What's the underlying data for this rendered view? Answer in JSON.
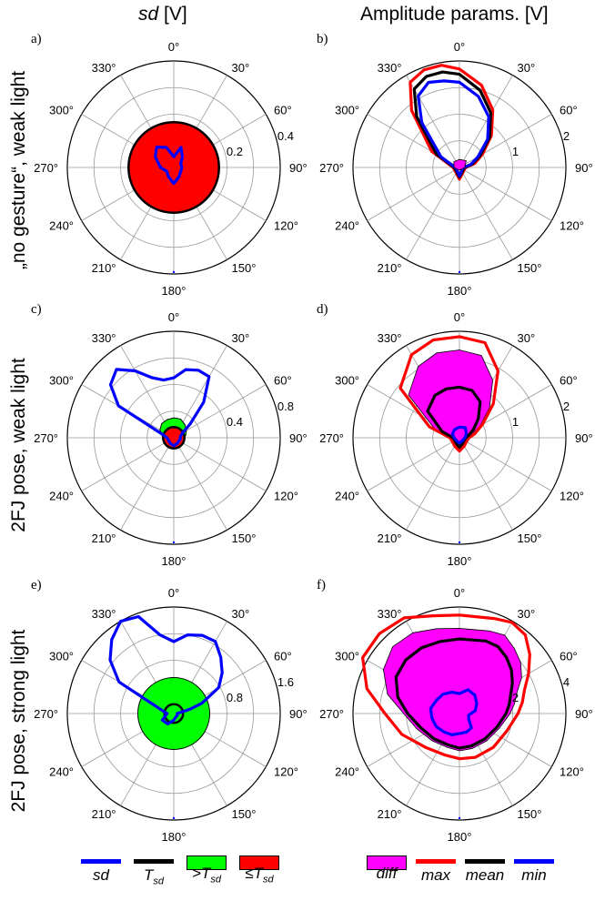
{
  "columns": {
    "left_title_italic": "sd",
    "left_title_rest": " [V]",
    "right_title": "Amplitude params. [V]"
  },
  "rows": [
    "„no gesture“, weak light",
    "2FJ pose, weak light",
    "2FJ pose, strong light"
  ],
  "angle_labels": [
    "0°",
    "30°",
    "60°",
    "90°",
    "120°",
    "150°",
    "180°",
    "210°",
    "240°",
    "270°",
    "300°",
    "330°"
  ],
  "colors": {
    "sd": "#0000ff",
    "T_sd": "#000000",
    "above_T": "#00ff00",
    "below_T": "#ff0000",
    "diff": "#ff00ff",
    "max": "#ff0000",
    "mean": "#000000",
    "min": "#0000ff",
    "grid": "#999999"
  },
  "legend_left": [
    {
      "key": "sd",
      "label": "sd",
      "sub": ""
    },
    {
      "key": "T_sd",
      "label": "T",
      "sub": "sd"
    },
    {
      "key": "above_T",
      "label": ">T",
      "sub": "sd"
    },
    {
      "key": "below_T",
      "label": "≤T",
      "sub": "sd"
    }
  ],
  "legend_right": [
    {
      "key": "diff",
      "label": "diff"
    },
    {
      "key": "max",
      "label": "max"
    },
    {
      "key": "mean",
      "label": "mean"
    },
    {
      "key": "min",
      "label": "min"
    }
  ],
  "chart_data": [
    {
      "panel": "a)",
      "type": "polar",
      "rlim": [
        0,
        0.4
      ],
      "r_ticks": [
        0.2,
        0.4
      ],
      "threshold": 0.17,
      "threshold_state": "below",
      "series": [
        {
          "key": "sd",
          "kind": "line",
          "theta": [
            0,
            20,
            40,
            60,
            80,
            100,
            120,
            150,
            180,
            210,
            240,
            270,
            300,
            320,
            340
          ],
          "r": [
            0.04,
            0.08,
            0.05,
            0.03,
            0.03,
            0.03,
            0.03,
            0.04,
            0.06,
            0.04,
            0.03,
            0.05,
            0.08,
            0.1,
            0.08
          ]
        }
      ]
    },
    {
      "panel": "b)",
      "type": "polar",
      "rlim": [
        0,
        2
      ],
      "r_ticks": [
        1,
        2
      ],
      "series": [
        {
          "key": "max",
          "kind": "line",
          "theta": [
            0,
            15,
            30,
            45,
            60,
            75,
            90,
            120,
            150,
            180,
            210,
            240,
            270,
            300,
            320,
            330,
            340,
            350
          ],
          "r": [
            1.85,
            1.6,
            1.25,
            0.85,
            0.5,
            0.3,
            0.12,
            0.1,
            0.12,
            0.22,
            0.12,
            0.1,
            0.12,
            0.6,
            1.4,
            1.85,
            1.95,
            1.95
          ]
        },
        {
          "key": "mean",
          "kind": "line",
          "theta": [
            0,
            15,
            30,
            45,
            60,
            75,
            90,
            120,
            150,
            180,
            210,
            240,
            270,
            300,
            320,
            330,
            340,
            350
          ],
          "r": [
            1.75,
            1.5,
            1.18,
            0.8,
            0.45,
            0.25,
            0.1,
            0.08,
            0.1,
            0.18,
            0.1,
            0.08,
            0.1,
            0.5,
            1.25,
            1.7,
            1.82,
            1.82
          ]
        },
        {
          "key": "min",
          "kind": "line",
          "theta": [
            0,
            15,
            30,
            45,
            60,
            75,
            90,
            120,
            150,
            180,
            210,
            240,
            270,
            300,
            320,
            330,
            340,
            350
          ],
          "r": [
            1.6,
            1.38,
            1.1,
            0.75,
            0.4,
            0.22,
            0.08,
            0.06,
            0.08,
            0.16,
            0.08,
            0.06,
            0.08,
            0.4,
            1.1,
            1.55,
            1.7,
            1.65
          ]
        },
        {
          "key": "diff",
          "kind": "fill",
          "theta": [
            0,
            45,
            90,
            135,
            180,
            225,
            270,
            315
          ],
          "r": [
            0.15,
            0.18,
            0.1,
            0.05,
            0.05,
            0.05,
            0.1,
            0.15
          ]
        }
      ]
    },
    {
      "panel": "c)",
      "type": "polar",
      "rlim": [
        0,
        0.8
      ],
      "r_ticks": [
        0.4,
        0.8
      ],
      "threshold": 0.08,
      "threshold_state": "below",
      "above_zone": {
        "theta": [
          270,
          280,
          300,
          320,
          340,
          0,
          20,
          40,
          60,
          80,
          90
        ],
        "r": [
          0.08,
          0.09,
          0.12,
          0.14,
          0.145,
          0.15,
          0.15,
          0.13,
          0.11,
          0.09,
          0.08
        ]
      },
      "series": [
        {
          "key": "sd",
          "kind": "line",
          "theta": [
            0,
            10,
            20,
            30,
            40,
            50,
            60,
            80,
            100,
            150,
            180,
            210,
            270,
            285,
            300,
            310,
            320,
            330,
            340,
            350
          ],
          "r": [
            0.45,
            0.52,
            0.54,
            0.53,
            0.35,
            0.16,
            0.08,
            0.05,
            0.05,
            0.05,
            0.06,
            0.05,
            0.05,
            0.08,
            0.48,
            0.62,
            0.67,
            0.58,
            0.48,
            0.44
          ]
        }
      ]
    },
    {
      "panel": "d)",
      "type": "polar",
      "rlim": [
        0,
        2
      ],
      "r_ticks": [
        1,
        2
      ],
      "series": [
        {
          "key": "diff",
          "kind": "fill",
          "theta": [
            0,
            15,
            30,
            45,
            60,
            75,
            90,
            120,
            150,
            180,
            210,
            240,
            270,
            290,
            310,
            330,
            345
          ],
          "r": [
            1.65,
            1.6,
            1.25,
            0.8,
            0.45,
            0.25,
            0.15,
            0.12,
            0.15,
            0.18,
            0.15,
            0.12,
            0.15,
            0.5,
            1.25,
            1.55,
            1.65
          ]
        },
        {
          "key": "max",
          "kind": "line",
          "theta": [
            0,
            15,
            30,
            45,
            60,
            75,
            90,
            120,
            150,
            180,
            210,
            240,
            270,
            290,
            310,
            330,
            345
          ],
          "r": [
            1.9,
            1.85,
            1.45,
            0.9,
            0.5,
            0.3,
            0.18,
            0.15,
            0.18,
            0.25,
            0.18,
            0.15,
            0.18,
            0.6,
            1.45,
            1.8,
            1.9
          ]
        },
        {
          "key": "mean",
          "kind": "line",
          "theta": [
            0,
            15,
            30,
            45,
            60,
            75,
            90,
            120,
            150,
            180,
            210,
            240,
            270,
            290,
            310,
            330,
            345
          ],
          "r": [
            0.95,
            0.92,
            0.78,
            0.5,
            0.3,
            0.18,
            0.12,
            0.1,
            0.12,
            0.18,
            0.12,
            0.1,
            0.12,
            0.35,
            0.78,
            0.92,
            0.95
          ]
        },
        {
          "key": "min",
          "kind": "line",
          "theta": [
            0,
            30,
            60,
            90,
            120,
            150,
            180,
            210,
            240,
            270,
            300,
            330
          ],
          "r": [
            0.2,
            0.22,
            0.15,
            0.1,
            0.08,
            0.08,
            0.1,
            0.08,
            0.08,
            0.1,
            0.15,
            0.18
          ]
        }
      ]
    },
    {
      "panel": "e)",
      "type": "polar",
      "rlim": [
        0,
        1.6
      ],
      "r_ticks": [
        0.8,
        1.6
      ],
      "threshold": 0.14,
      "threshold_state": "above",
      "above_zone": {
        "theta": [
          0
        ],
        "r": [
          0.54
        ],
        "full_circle": true
      },
      "series": [
        {
          "key": "sd",
          "kind": "line",
          "theta": [
            0,
            10,
            20,
            30,
            40,
            50,
            60,
            70,
            75,
            90,
            120,
            150,
            180,
            210,
            240,
            270,
            285,
            300,
            310,
            320,
            330,
            340,
            350
          ],
          "r": [
            1.08,
            1.2,
            1.25,
            1.25,
            1.1,
            0.95,
            0.78,
            0.45,
            0.25,
            0.05,
            0.06,
            0.06,
            0.1,
            0.18,
            0.2,
            0.1,
            0.18,
            0.95,
            1.25,
            1.45,
            1.6,
            1.55,
            1.2
          ]
        }
      ]
    },
    {
      "panel": "f)",
      "type": "polar",
      "rlim": [
        0,
        4
      ],
      "r_ticks": [
        2,
        4
      ],
      "series": [
        {
          "key": "max",
          "kind": "line",
          "theta": [
            0,
            20,
            30,
            40,
            50,
            60,
            70,
            80,
            90,
            110,
            135,
            160,
            180,
            200,
            225,
            250,
            270,
            285,
            300,
            315,
            330,
            345
          ],
          "r": [
            3.7,
            3.8,
            3.95,
            3.85,
            3.45,
            3.0,
            2.6,
            2.4,
            2.2,
            1.9,
            1.8,
            1.75,
            1.7,
            1.65,
            1.8,
            2.3,
            2.8,
            3.6,
            4.2,
            4.25,
            4.15,
            3.8
          ]
        },
        {
          "key": "diff",
          "kind": "fill",
          "theta": [
            0,
            20,
            30,
            40,
            50,
            60,
            70,
            80,
            90,
            110,
            135,
            160,
            180,
            200,
            225,
            250,
            270,
            285,
            300,
            315,
            330,
            345
          ],
          "r": [
            3.2,
            3.3,
            3.4,
            3.2,
            3.0,
            2.7,
            2.3,
            2.1,
            1.9,
            1.6,
            1.45,
            1.4,
            1.4,
            1.35,
            1.45,
            1.7,
            2.1,
            2.8,
            3.3,
            3.55,
            3.5,
            3.3
          ]
        },
        {
          "key": "mean",
          "kind": "line",
          "theta": [
            0,
            20,
            30,
            40,
            50,
            60,
            70,
            80,
            90,
            110,
            135,
            160,
            180,
            200,
            225,
            250,
            270,
            285,
            300,
            315,
            330,
            345
          ],
          "r": [
            2.8,
            2.9,
            2.9,
            2.75,
            2.55,
            2.3,
            2.05,
            1.9,
            1.75,
            1.5,
            1.35,
            1.3,
            1.3,
            1.25,
            1.35,
            1.55,
            1.95,
            2.4,
            2.75,
            2.85,
            2.85,
            2.8
          ]
        },
        {
          "key": "min",
          "kind": "line",
          "theta": [
            0,
            20,
            40,
            60,
            80,
            100,
            120,
            140,
            160,
            180,
            200,
            220,
            240,
            260,
            280,
            300,
            320,
            340
          ],
          "r": [
            0.75,
            0.95,
            0.9,
            0.75,
            0.6,
            0.35,
            0.4,
            0.7,
            0.75,
            0.75,
            0.85,
            0.9,
            1.0,
            1.05,
            1.1,
            1.0,
            0.95,
            0.85
          ]
        }
      ]
    }
  ]
}
